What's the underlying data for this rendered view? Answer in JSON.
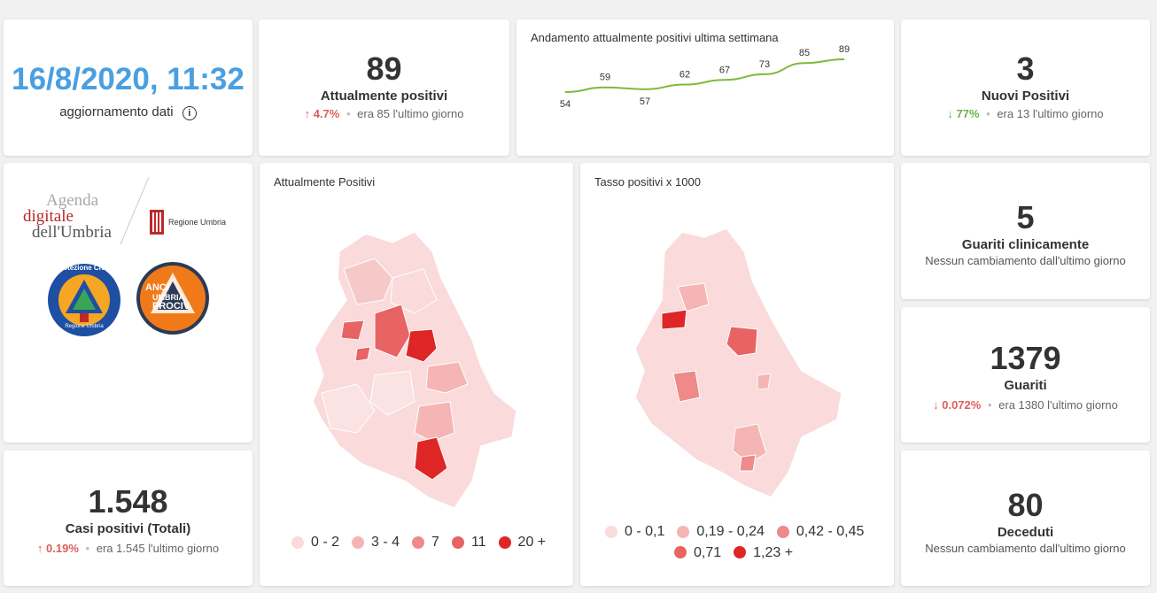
{
  "update": {
    "datetime": "16/8/2020, 11:32",
    "label": "aggiornamento dati"
  },
  "attualmente_positivi": {
    "value": "89",
    "label": "Attualmente positivi",
    "pct": "4.7%",
    "prev": "era 85",
    "period": "l'ultimo giorno"
  },
  "trend": {
    "title": "Andamento attualmente positivi ultima settimana",
    "values": [
      54,
      59,
      57,
      62,
      67,
      73,
      85,
      89
    ]
  },
  "nuovi_positivi": {
    "value": "3",
    "label": "Nuovi Positivi",
    "pct": "77%",
    "prev": "era 13",
    "period": "l'ultimo giorno"
  },
  "logos": {
    "agenda_line1": "Agenda",
    "agenda_line2": "digitale",
    "agenda_line3": "dell'Umbria",
    "regione": "Regione Umbria",
    "protezione": "Protezione Civile",
    "protezione_sub": "Regione Umbria",
    "anci1": "ANCI",
    "anci2": "UMBRIA",
    "anci3": "PROCIV"
  },
  "map_positivi": {
    "title": "Attualmente Positivi",
    "legend": [
      {
        "label": "0 - 2",
        "color": "#fadada"
      },
      {
        "label": "3 - 4",
        "color": "#f5b5b5"
      },
      {
        "label": "7",
        "color": "#ee8a8a"
      },
      {
        "label": "11",
        "color": "#e86363"
      },
      {
        "label": "20 +",
        "color": "#de2626"
      }
    ]
  },
  "map_tasso": {
    "title": "Tasso positivi x 1000",
    "legend": [
      {
        "label": "0 - 0,1",
        "color": "#fadada"
      },
      {
        "label": "0,19 - 0,24",
        "color": "#f5b5b5"
      },
      {
        "label": "0,42 - 0,45",
        "color": "#ee8a8a"
      },
      {
        "label": "0,71",
        "color": "#e86363"
      },
      {
        "label": "1,23 +",
        "color": "#de2626"
      }
    ]
  },
  "guariti_clinicamente": {
    "value": "5",
    "label": "Guariti clinicamente",
    "note": "Nessun cambiamento dall'ultimo giorno"
  },
  "guariti": {
    "value": "1379",
    "label": "Guariti",
    "pct": "0.072%",
    "prev": "era 1380",
    "period": "l'ultimo giorno"
  },
  "casi_totali": {
    "value": "1.548",
    "label": "Casi positivi (Totali)",
    "pct": "0.19%",
    "prev": "era 1.545",
    "period": "l'ultimo giorno"
  },
  "deceduti": {
    "value": "80",
    "label": "Deceduti",
    "note": "Nessun cambiamento dall'ultimo giorno"
  },
  "colors": {
    "accent_blue": "#4a9fe0",
    "up_red": "#e05c5c",
    "down_green": "#6ab04c",
    "trend_line": "#7dba3c"
  }
}
